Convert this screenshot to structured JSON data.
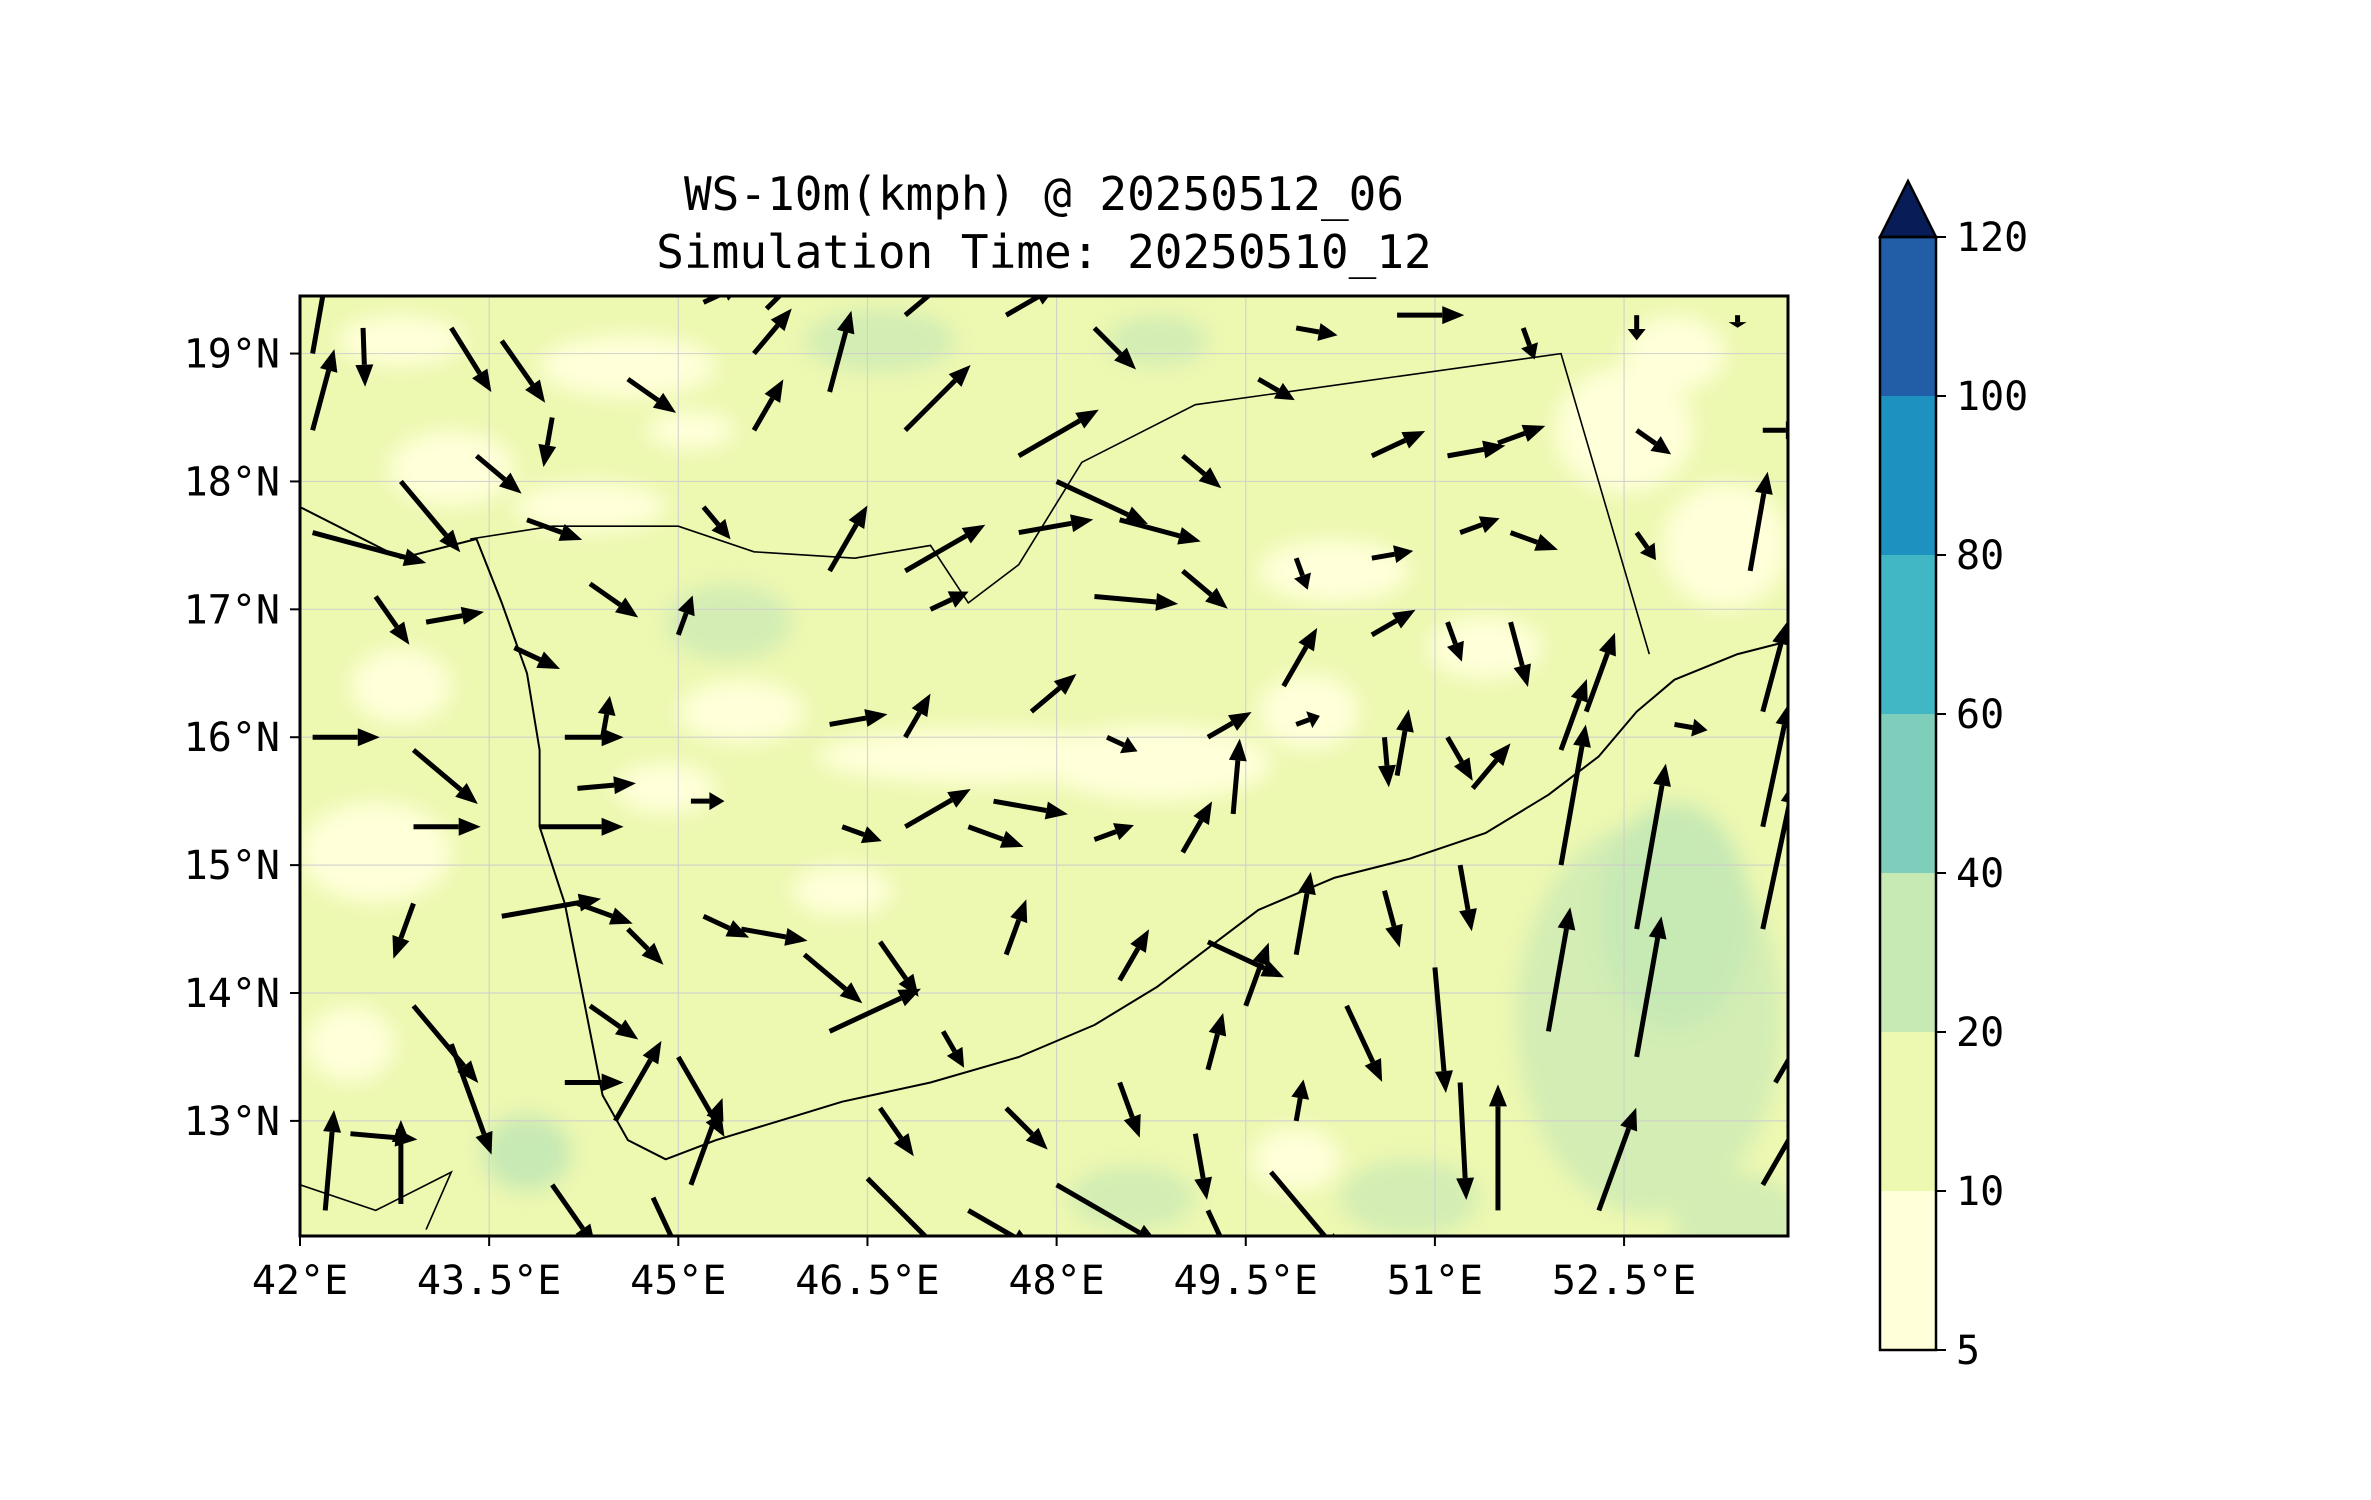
{
  "title": {
    "line1": "WS-10m(kmph) @ 20250512_06",
    "line2": "Simulation Time: 20250510_12"
  },
  "map": {
    "lon_range": [
      42.0,
      53.8
    ],
    "lat_range": [
      12.1,
      19.45
    ],
    "lon_ticks": [
      {
        "value": 42.0,
        "label": "42°E"
      },
      {
        "value": 43.5,
        "label": "43.5°E"
      },
      {
        "value": 45.0,
        "label": "45°E"
      },
      {
        "value": 46.5,
        "label": "46.5°E"
      },
      {
        "value": 48.0,
        "label": "48°E"
      },
      {
        "value": 49.5,
        "label": "49.5°E"
      },
      {
        "value": 51.0,
        "label": "51°E"
      },
      {
        "value": 52.5,
        "label": "52.5°E"
      }
    ],
    "lat_ticks": [
      {
        "value": 13,
        "label": "13°N"
      },
      {
        "value": 14,
        "label": "14°N"
      },
      {
        "value": 15,
        "label": "15°N"
      },
      {
        "value": 16,
        "label": "16°N"
      },
      {
        "value": 17,
        "label": "17°N"
      },
      {
        "value": 18,
        "label": "18°N"
      },
      {
        "value": 19,
        "label": "19°N"
      }
    ],
    "gridlines": true,
    "coastline": [
      [
        42,
        17.8
      ],
      [
        42.8,
        17.4
      ],
      [
        43.4,
        17.55
      ],
      [
        43.6,
        17.05
      ],
      [
        43.8,
        16.5
      ],
      [
        43.9,
        15.9
      ],
      [
        43.9,
        15.3
      ],
      [
        44.1,
        14.7
      ],
      [
        44.2,
        14.2
      ],
      [
        44.3,
        13.7
      ],
      [
        44.4,
        13.2
      ],
      [
        44.6,
        12.85
      ],
      [
        44.9,
        12.7
      ],
      [
        45.3,
        12.85
      ],
      [
        45.8,
        13.0
      ],
      [
        46.3,
        13.15
      ],
      [
        47.0,
        13.3
      ],
      [
        47.7,
        13.5
      ],
      [
        48.3,
        13.75
      ],
      [
        48.8,
        14.05
      ],
      [
        49.2,
        14.35
      ],
      [
        49.6,
        14.65
      ],
      [
        50.2,
        14.9
      ],
      [
        50.8,
        15.05
      ],
      [
        51.4,
        15.25
      ],
      [
        51.9,
        15.55
      ],
      [
        52.3,
        15.85
      ],
      [
        52.6,
        16.2
      ],
      [
        52.9,
        16.45
      ],
      [
        53.4,
        16.65
      ],
      [
        53.8,
        16.75
      ]
    ],
    "borders": [
      [
        [
          43.35,
          17.55
        ],
        [
          44.0,
          17.65
        ],
        [
          45.0,
          17.65
        ],
        [
          45.6,
          17.45
        ],
        [
          46.4,
          17.4
        ],
        [
          47.0,
          17.5
        ],
        [
          47.3,
          17.05
        ],
        [
          47.7,
          17.35
        ],
        [
          48.2,
          18.15
        ],
        [
          49.1,
          18.6
        ],
        [
          52.0,
          19.0
        ],
        [
          52.7,
          16.65
        ]
      ],
      [
        [
          42.0,
          12.5
        ],
        [
          42.6,
          12.3
        ],
        [
          43.2,
          12.6
        ],
        [
          43.0,
          12.15
        ]
      ]
    ],
    "wind_vectors": [
      [
        42.1,
        19.0,
        80,
        20
      ],
      [
        42.1,
        18.4,
        75,
        20
      ],
      [
        42.1,
        17.6,
        -15,
        28
      ],
      [
        42.5,
        19.2,
        -88,
        14
      ],
      [
        42.8,
        18.0,
        -50,
        22
      ],
      [
        43.2,
        19.2,
        -58,
        18
      ],
      [
        42.6,
        17.1,
        -55,
        14
      ],
      [
        43.0,
        16.9,
        10,
        14
      ],
      [
        42.1,
        16.0,
        0,
        16
      ],
      [
        42.9,
        15.9,
        -40,
        20
      ],
      [
        42.9,
        15.3,
        0,
        16
      ],
      [
        42.9,
        14.7,
        -110,
        14
      ],
      [
        42.9,
        13.9,
        -50,
        24
      ],
      [
        42.4,
        12.9,
        -5,
        16
      ],
      [
        42.2,
        12.3,
        85,
        24
      ],
      [
        42.8,
        12.35,
        90,
        20
      ],
      [
        43.2,
        13.6,
        -70,
        28
      ],
      [
        43.6,
        14.6,
        10,
        24
      ],
      [
        43.9,
        15.3,
        0,
        20
      ],
      [
        44.1,
        16.0,
        0,
        14
      ],
      [
        43.7,
        16.7,
        -25,
        12
      ],
      [
        43.8,
        17.7,
        -20,
        14
      ],
      [
        43.4,
        18.2,
        -40,
        14
      ],
      [
        43.6,
        19.1,
        -55,
        18
      ],
      [
        44.0,
        18.5,
        -100,
        12
      ],
      [
        44.3,
        17.2,
        -35,
        14
      ],
      [
        44.6,
        18.8,
        -35,
        14
      ],
      [
        44.4,
        16.0,
        80,
        10
      ],
      [
        44.2,
        15.6,
        5,
        14
      ],
      [
        44.2,
        14.7,
        -20,
        14
      ],
      [
        44.6,
        14.5,
        -45,
        12
      ],
      [
        44.3,
        13.9,
        -35,
        14
      ],
      [
        44.1,
        13.3,
        0,
        14
      ],
      [
        44.0,
        12.5,
        -55,
        18
      ],
      [
        44.5,
        13.0,
        60,
        22
      ],
      [
        44.8,
        12.4,
        -65,
        20
      ],
      [
        45.1,
        12.5,
        70,
        22
      ],
      [
        45.0,
        13.5,
        -60,
        22
      ],
      [
        45.2,
        14.6,
        -25,
        12
      ],
      [
        45.5,
        14.5,
        -10,
        16
      ],
      [
        45.1,
        15.5,
        0,
        8
      ],
      [
        45.0,
        16.8,
        70,
        10
      ],
      [
        45.2,
        17.8,
        -50,
        10
      ],
      [
        45.6,
        18.4,
        60,
        14
      ],
      [
        45.6,
        19.0,
        50,
        14
      ],
      [
        45.2,
        19.4,
        25,
        10
      ],
      [
        45.7,
        19.35,
        45,
        14
      ],
      [
        46.2,
        18.7,
        75,
        20
      ],
      [
        46.2,
        17.3,
        60,
        18
      ],
      [
        46.2,
        16.1,
        10,
        14
      ],
      [
        46.3,
        15.3,
        -20,
        10
      ],
      [
        46.0,
        14.3,
        -40,
        18
      ],
      [
        46.2,
        13.7,
        25,
        24
      ],
      [
        46.6,
        13.1,
        -55,
        14
      ],
      [
        46.5,
        12.55,
        -45,
        30
      ],
      [
        46.6,
        14.4,
        -55,
        16
      ],
      [
        46.8,
        15.3,
        30,
        18
      ],
      [
        46.8,
        16.0,
        60,
        12
      ],
      [
        46.8,
        17.3,
        30,
        22
      ],
      [
        46.8,
        18.4,
        45,
        22
      ],
      [
        46.8,
        19.3,
        40,
        16
      ],
      [
        47.3,
        15.3,
        -20,
        14
      ],
      [
        47.1,
        13.7,
        -60,
        10
      ],
      [
        47.0,
        17.0,
        25,
        10
      ],
      [
        47.3,
        12.3,
        -30,
        18
      ],
      [
        47.6,
        13.1,
        -45,
        14
      ],
      [
        47.6,
        14.3,
        70,
        14
      ],
      [
        47.5,
        15.5,
        -10,
        18
      ],
      [
        47.8,
        16.2,
        40,
        14
      ],
      [
        47.7,
        17.6,
        10,
        18
      ],
      [
        47.6,
        19.3,
        30,
        14
      ],
      [
        47.7,
        18.2,
        30,
        22
      ],
      [
        48.3,
        17.1,
        -5,
        20
      ],
      [
        48.0,
        18.0,
        -25,
        24
      ],
      [
        48.3,
        19.2,
        -45,
        14
      ],
      [
        48.0,
        12.5,
        -30,
        28
      ],
      [
        48.5,
        13.3,
        -70,
        14
      ],
      [
        48.5,
        14.1,
        60,
        14
      ],
      [
        48.3,
        15.2,
        20,
        10
      ],
      [
        48.4,
        16.0,
        -25,
        8
      ],
      [
        48.5,
        17.7,
        -15,
        20
      ],
      [
        49.0,
        18.2,
        -40,
        12
      ],
      [
        49.0,
        17.3,
        -40,
        14
      ],
      [
        49.2,
        16.0,
        30,
        12
      ],
      [
        49.0,
        15.1,
        60,
        14
      ],
      [
        49.2,
        14.4,
        -25,
        20
      ],
      [
        49.2,
        13.4,
        75,
        14
      ],
      [
        49.2,
        12.3,
        -65,
        14
      ],
      [
        49.1,
        12.9,
        -80,
        16
      ],
      [
        49.5,
        13.9,
        70,
        16
      ],
      [
        49.7,
        12.6,
        -50,
        26
      ],
      [
        49.9,
        14.3,
        80,
        20
      ],
      [
        49.9,
        13.0,
        80,
        10
      ],
      [
        49.4,
        15.4,
        85,
        18
      ],
      [
        49.8,
        16.4,
        60,
        16
      ],
      [
        49.9,
        17.4,
        -70,
        8
      ],
      [
        49.6,
        18.8,
        -30,
        10
      ],
      [
        49.9,
        19.2,
        -10,
        10
      ],
      [
        50.5,
        18.2,
        25,
        14
      ],
      [
        50.5,
        17.4,
        10,
        10
      ],
      [
        50.5,
        16.8,
        30,
        12
      ],
      [
        49.9,
        16.1,
        20,
        6
      ],
      [
        50.6,
        16.0,
        -85,
        12
      ],
      [
        50.7,
        15.7,
        80,
        16
      ],
      [
        50.6,
        14.8,
        -75,
        14
      ],
      [
        50.3,
        13.9,
        -65,
        20
      ],
      [
        50.7,
        19.3,
        0,
        16
      ],
      [
        51.1,
        18.2,
        10,
        14
      ],
      [
        51.2,
        17.6,
        20,
        10
      ],
      [
        51.1,
        16.9,
        -70,
        10
      ],
      [
        51.1,
        16.0,
        -60,
        12
      ],
      [
        51.3,
        15.6,
        50,
        14
      ],
      [
        51.2,
        15.0,
        -80,
        16
      ],
      [
        51.0,
        14.2,
        -85,
        30
      ],
      [
        51.2,
        13.3,
        -87,
        28
      ],
      [
        51.5,
        12.3,
        90,
        30
      ],
      [
        51.9,
        13.7,
        80,
        30
      ],
      [
        52.0,
        15.0,
        80,
        34
      ],
      [
        52.0,
        15.9,
        70,
        18
      ],
      [
        51.6,
        16.9,
        -75,
        16
      ],
      [
        51.6,
        17.6,
        -20,
        12
      ],
      [
        51.5,
        18.3,
        20,
        12
      ],
      [
        51.7,
        19.2,
        -70,
        8
      ],
      [
        52.2,
        16.2,
        70,
        20
      ],
      [
        52.6,
        14.5,
        80,
        40
      ],
      [
        52.6,
        13.5,
        80,
        34
      ],
      [
        52.3,
        12.3,
        70,
        26
      ],
      [
        52.9,
        16.1,
        -10,
        8
      ],
      [
        52.6,
        18.4,
        -35,
        10
      ],
      [
        52.6,
        17.6,
        -55,
        8
      ],
      [
        52.6,
        19.3,
        -90,
        6
      ],
      [
        53.4,
        19.3,
        -90,
        3
      ],
      [
        53.6,
        18.4,
        0,
        10
      ],
      [
        53.5,
        17.3,
        80,
        24
      ],
      [
        53.6,
        16.2,
        75,
        22
      ],
      [
        53.6,
        15.3,
        78,
        30
      ],
      [
        53.6,
        14.5,
        78,
        36
      ],
      [
        53.7,
        13.3,
        60,
        20
      ],
      [
        53.6,
        12.5,
        60,
        20
      ]
    ]
  },
  "colorbar": {
    "levels": [
      5,
      10,
      20,
      40,
      60,
      80,
      100,
      120
    ],
    "labels": [
      "5",
      "10",
      "20",
      "40",
      "60",
      "80",
      "100",
      "120"
    ],
    "colors": [
      "#ffffd9",
      "#edf8b1",
      "#c7e9b4",
      "#7fcdbb",
      "#41b6c4",
      "#1d91c0",
      "#225ea8",
      "#253494"
    ],
    "extend_color": "#081d58"
  },
  "fill_colors": {
    "land_base": "#edf8b1",
    "calm": "#ffffd9",
    "strong": "#d3edb4",
    "peak": "#c7e9b4"
  }
}
